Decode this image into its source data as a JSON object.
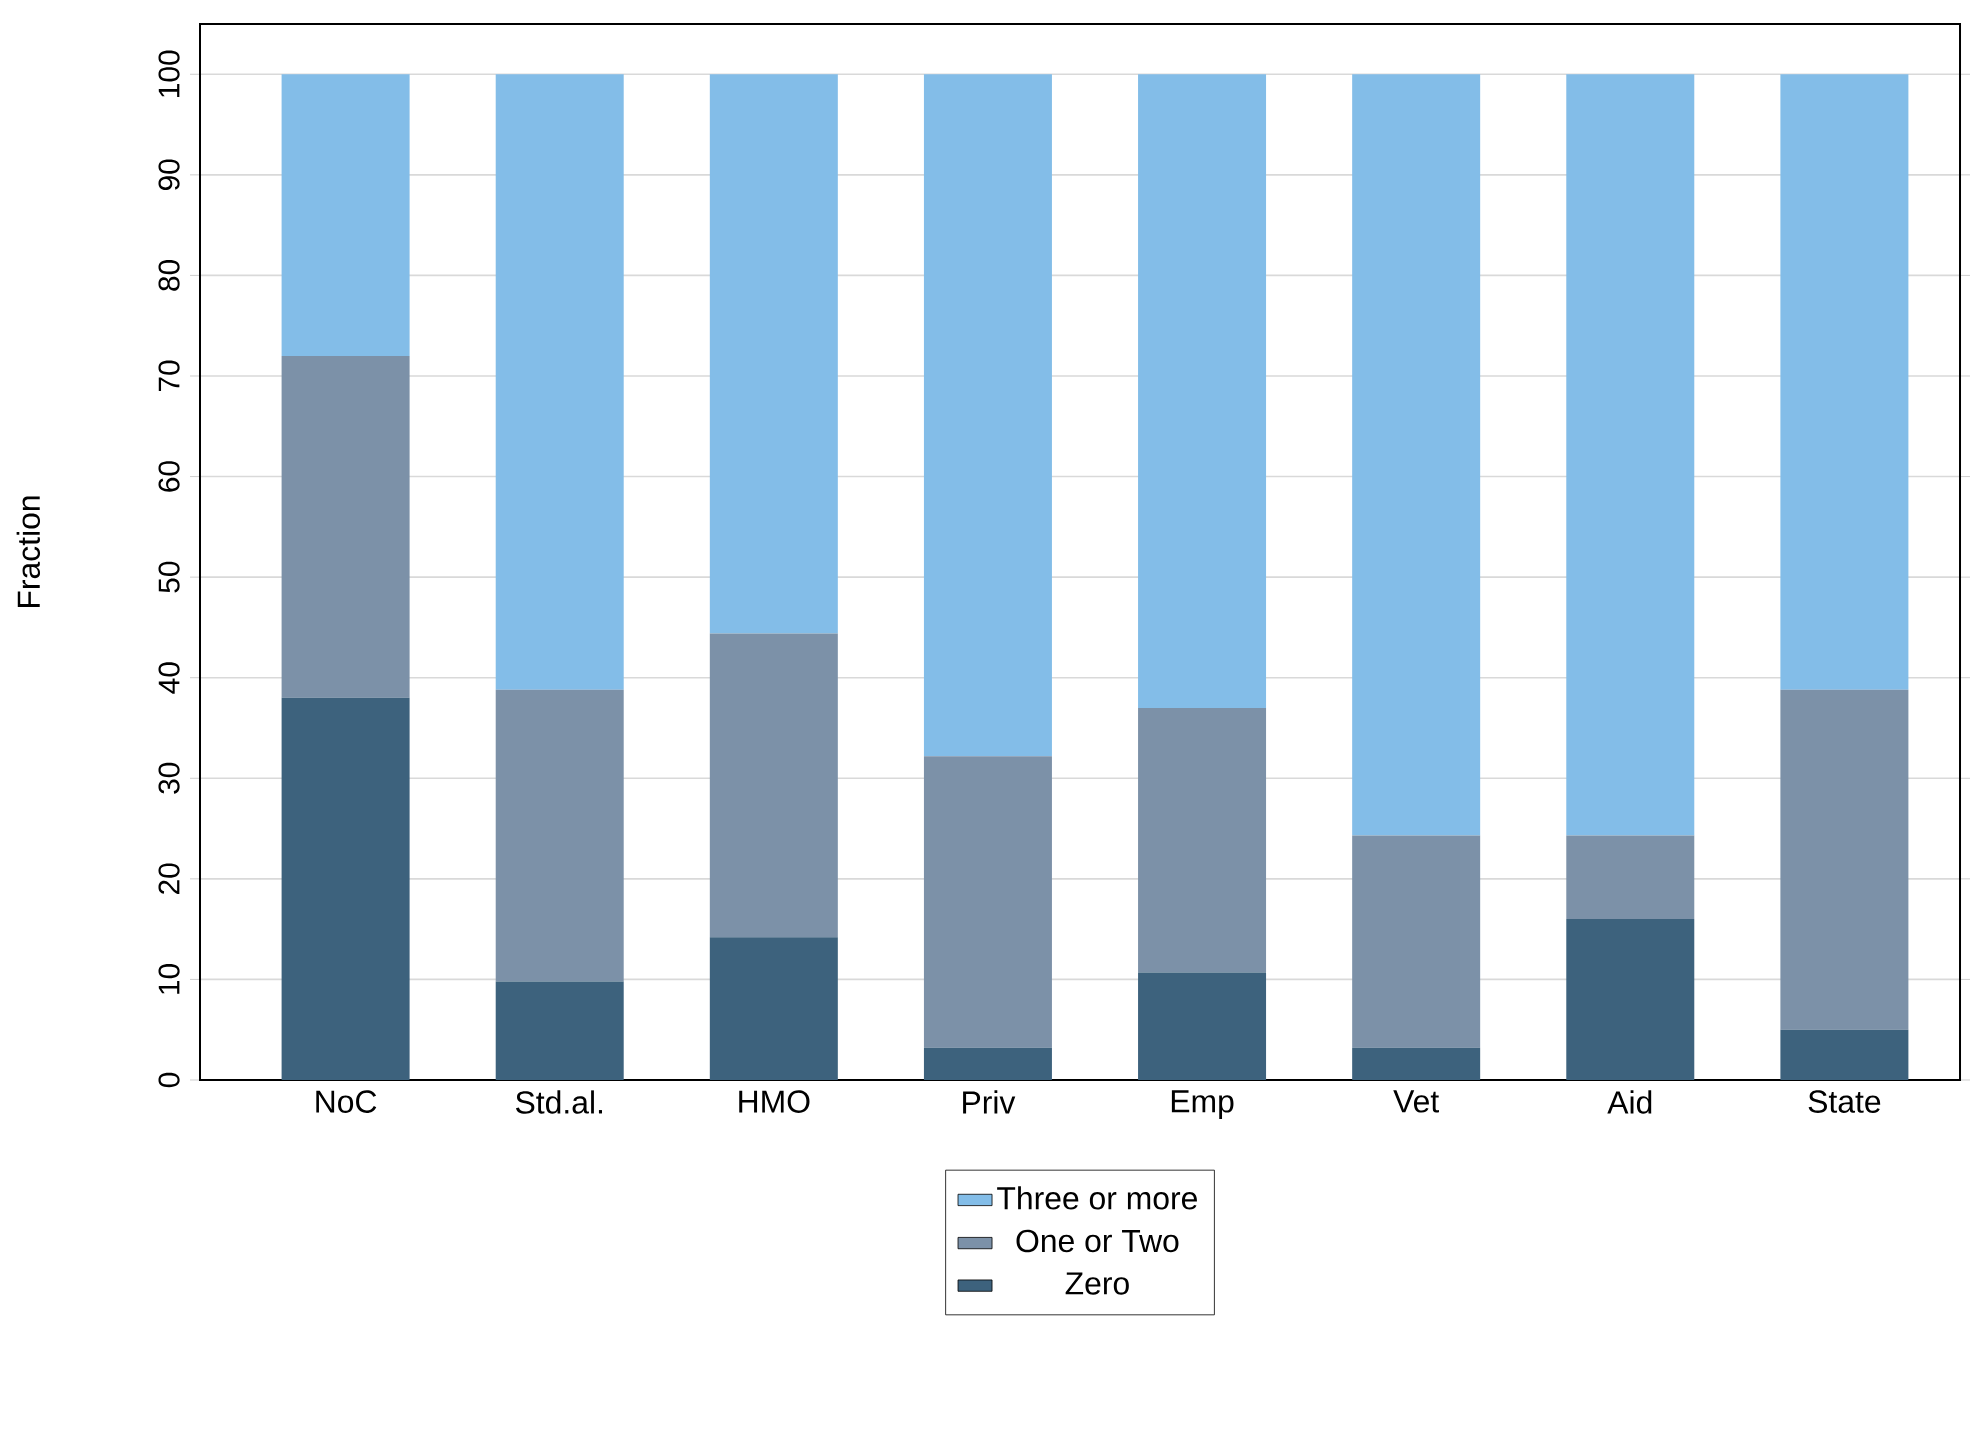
{
  "chart_data": {
    "type": "bar",
    "stacked": true,
    "ylabel": "Fraction",
    "categories": [
      "NoC",
      "Std.al.",
      "HMO",
      "Priv",
      "Emp",
      "Vet",
      "Aid",
      "State"
    ],
    "series": [
      {
        "name": "Zero",
        "color": "#3d627d",
        "values": [
          38,
          9.8,
          14.2,
          3.2,
          10.7,
          3.2,
          16,
          5
        ]
      },
      {
        "name": "One or Two",
        "color": "#7c91a8",
        "values": [
          34,
          29,
          30.2,
          29,
          26.3,
          21.1,
          8.3,
          33.8
        ]
      },
      {
        "name": "Three or more",
        "color": "#83bde8",
        "values": [
          28,
          61.2,
          55.6,
          67.8,
          63,
          75.7,
          75.7,
          61.2
        ]
      }
    ],
    "ylim": [
      0,
      105
    ],
    "yticks": [
      0,
      10,
      20,
      30,
      40,
      50,
      60,
      70,
      80,
      90,
      100
    ],
    "grid": "y",
    "legend": "bottom"
  }
}
